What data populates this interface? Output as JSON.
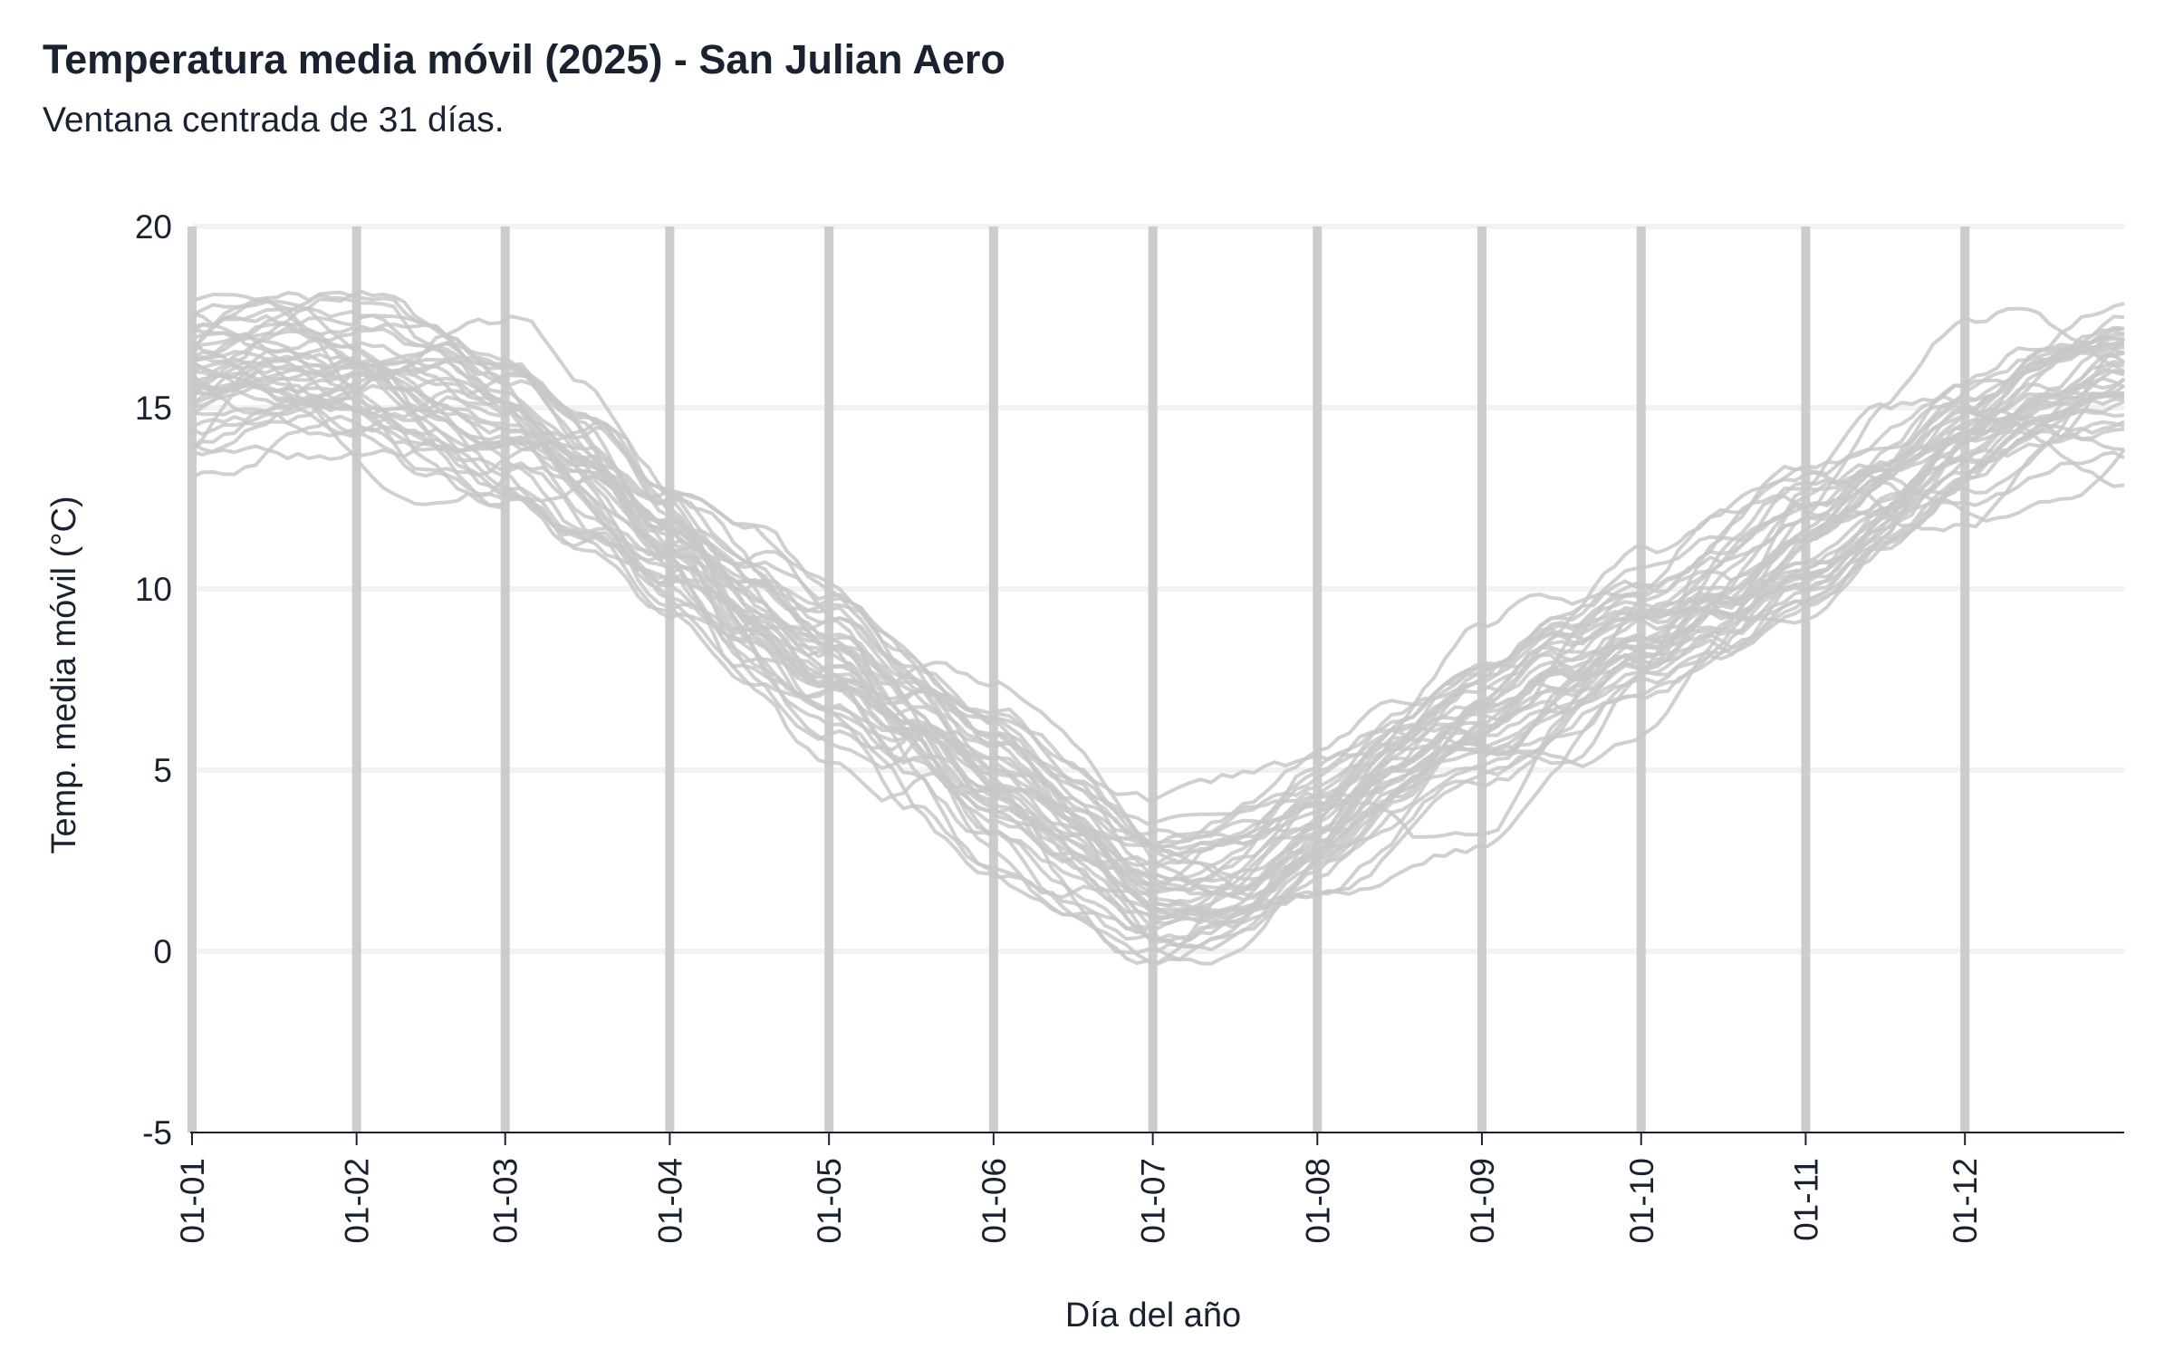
{
  "chart_data": {
    "type": "line",
    "title": "Temperatura media móvil (2025) - San Julian Aero",
    "subtitle": "Ventana centrada de 31 días.",
    "xlabel": "Día del año",
    "ylabel": "Temp. media móvil (°C)",
    "ylim": [
      -5,
      20
    ],
    "y_ticks": [
      -5,
      0,
      5,
      10,
      15,
      20
    ],
    "x_unit": "day of year",
    "xlim": [
      1,
      365
    ],
    "x_tick_labels": [
      "01-01",
      "01-02",
      "01-03",
      "01-04",
      "01-05",
      "01-06",
      "01-07",
      "01-08",
      "01-09",
      "01-10",
      "01-11",
      "01-12"
    ],
    "x_tick_days": [
      1,
      32,
      60,
      91,
      121,
      152,
      182,
      213,
      244,
      274,
      305,
      335
    ],
    "grid": "horizontal light gridlines, vertical gray month-start lines",
    "line_color": "#c8c8c8",
    "climatology": {
      "x": [
        1,
        15,
        32,
        46,
        60,
        75,
        91,
        106,
        121,
        136,
        152,
        167,
        182,
        197,
        213,
        228,
        244,
        259,
        274,
        289,
        305,
        320,
        335,
        350,
        365
      ],
      "y": [
        15.8,
        16.1,
        16.0,
        15.5,
        14.6,
        13.0,
        11.2,
        9.6,
        8.1,
        6.2,
        4.3,
        3.2,
        2.3,
        2.6,
        3.6,
        4.6,
        5.8,
        7.3,
        8.9,
        10.4,
        11.9,
        13.0,
        14.0,
        14.8,
        15.3
      ]
    },
    "n_series": 40,
    "series": [
      {
        "x": [
          1,
          30,
          60,
          91,
          121,
          152,
          182,
          213,
          244,
          274,
          305,
          335,
          365
        ],
        "y": [
          15.6,
          16.7,
          14.8,
          11.4,
          8.6,
          4.9,
          2.9,
          4.1,
          6.1,
          8.4,
          11.6,
          14.6,
          15.1
        ]
      },
      {
        "x": [
          1,
          30,
          60,
          91,
          121,
          152,
          182,
          213,
          244,
          274,
          305,
          335,
          365
        ],
        "y": [
          16.2,
          16.0,
          13.9,
          10.9,
          7.6,
          3.8,
          1.8,
          3.2,
          5.3,
          9.2,
          12.4,
          13.7,
          16.0
        ]
      },
      {
        "x": [
          1,
          30,
          60,
          91,
          121,
          152,
          182,
          213,
          244,
          274,
          305,
          335,
          365
        ],
        "y": [
          17.5,
          17.9,
          15.4,
          12.1,
          9.5,
          6.0,
          3.5,
          4.8,
          6.7,
          9.7,
          12.9,
          15.3,
          17.8
        ]
      },
      {
        "x": [
          1,
          30,
          60,
          91,
          121,
          152,
          182,
          213,
          244,
          274,
          305,
          335,
          365
        ],
        "y": [
          14.4,
          15.2,
          13.5,
          10.2,
          7.1,
          3.1,
          1.2,
          2.0,
          4.9,
          7.6,
          10.6,
          12.8,
          13.6
        ]
      },
      {
        "x": [
          1,
          30,
          60,
          91,
          121,
          152,
          182,
          213,
          244,
          274,
          305,
          335,
          365
        ],
        "y": [
          13.0,
          14.6,
          13.9,
          10.9,
          8.0,
          3.9,
          0.9,
          1.9,
          3.1,
          7.1,
          10.3,
          13.7,
          15.2
        ]
      },
      {
        "x": [
          1,
          30,
          60,
          91,
          121,
          152,
          182,
          213,
          244,
          274,
          305,
          335,
          365
        ],
        "y": [
          16.3,
          18.6,
          16.2,
          12.3,
          9.1,
          4.4,
          2.6,
          4.4,
          6.3,
          10.2,
          13.5,
          14.9,
          15.9
        ]
      },
      {
        "x": [
          1,
          30,
          60,
          91,
          121,
          152,
          182,
          213,
          244,
          274,
          305,
          335,
          365
        ],
        "y": [
          15.0,
          15.6,
          14.2,
          11.0,
          6.3,
          2.4,
          0.3,
          1.5,
          4.4,
          8.0,
          11.2,
          13.4,
          14.4
        ]
      },
      {
        "x": [
          1,
          30,
          60,
          91,
          121,
          152,
          182,
          213,
          244,
          274,
          305,
          335,
          365
        ],
        "y": [
          16.8,
          17.1,
          15.9,
          11.8,
          9.8,
          6.6,
          4.3,
          5.2,
          6.9,
          10.9,
          13.2,
          15.6,
          16.6
        ]
      },
      {
        "x": [
          1,
          30,
          60,
          91,
          121,
          152,
          182,
          213,
          244,
          274,
          305,
          335,
          365
        ],
        "y": [
          15.3,
          16.4,
          12.5,
          10.1,
          7.9,
          4.5,
          3.0,
          3.8,
          5.5,
          8.7,
          11.9,
          14.2,
          15.5
        ]
      },
      {
        "x": [
          1,
          30,
          60,
          91,
          121,
          152,
          182,
          213,
          244,
          274,
          305,
          335,
          365
        ],
        "y": [
          15.9,
          15.8,
          14.5,
          11.6,
          8.3,
          5.3,
          2.1,
          2.8,
          5.0,
          7.3,
          10.0,
          13.1,
          14.8
        ]
      }
    ]
  }
}
